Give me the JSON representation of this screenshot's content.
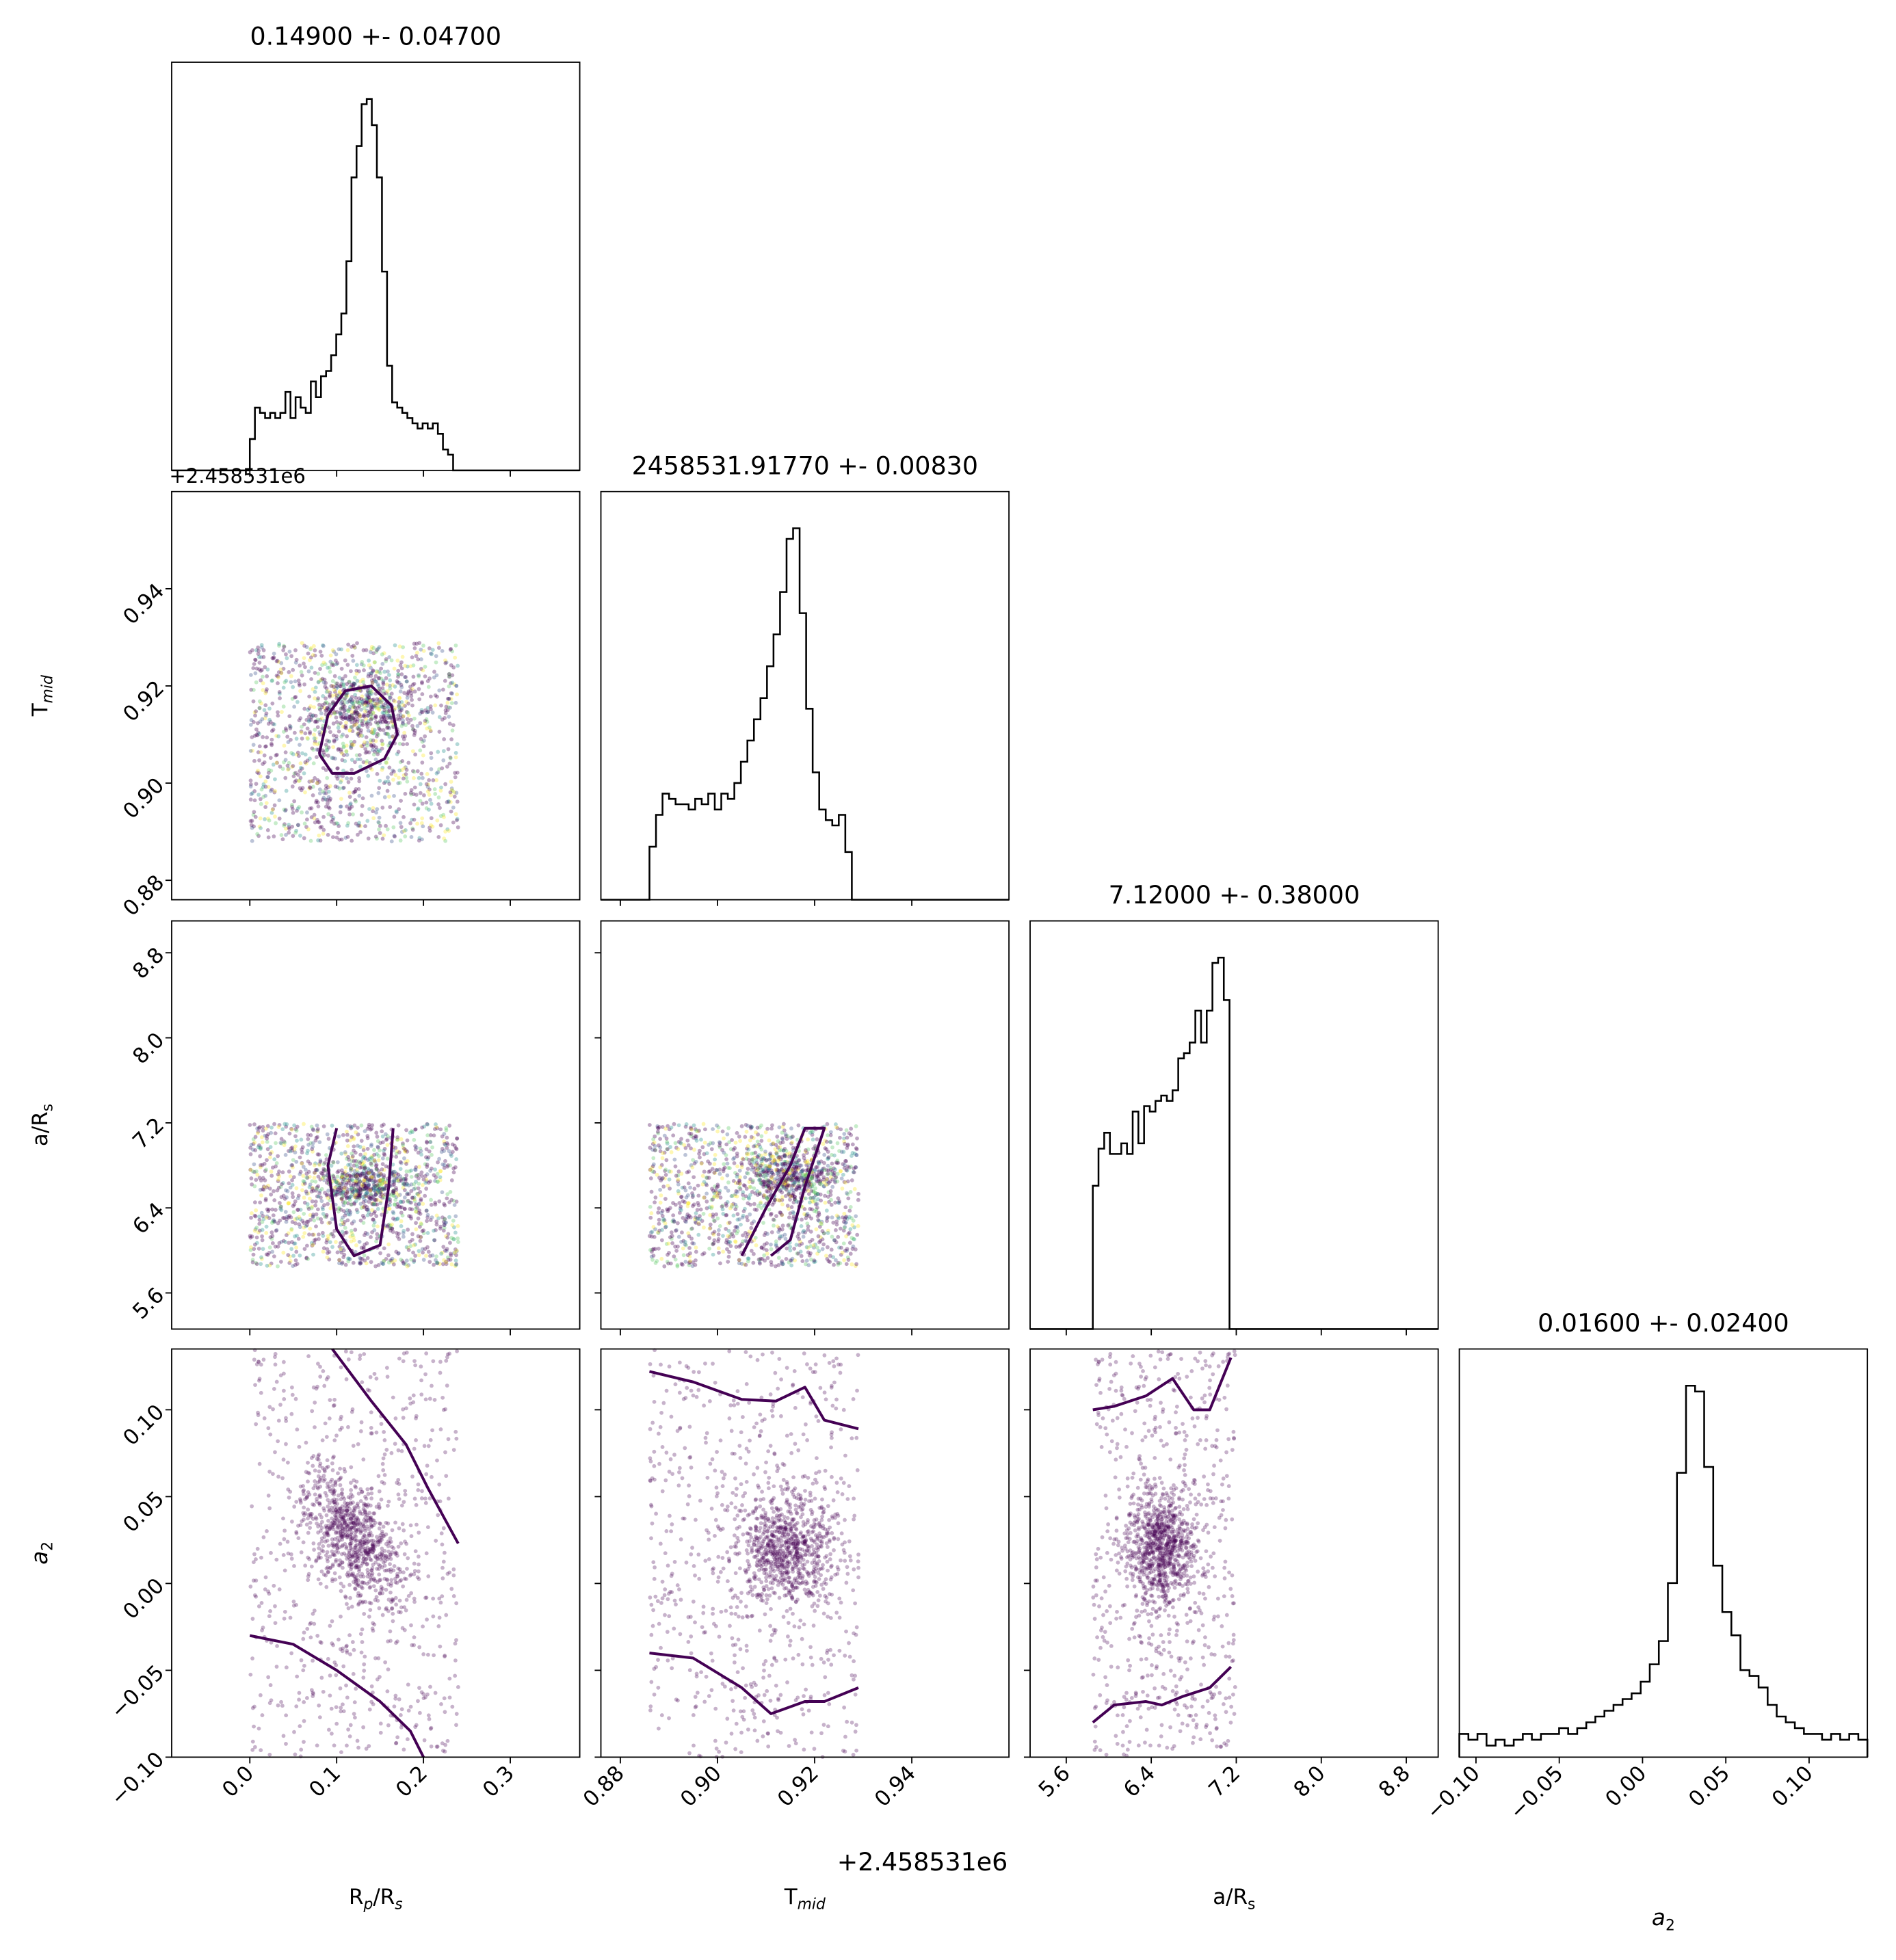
{
  "chart_data": [
    {
      "type": "histogram",
      "parameter": "R_p/R_s",
      "title": "0.14900 +- 0.04700",
      "xlabel": "Rp/Rs",
      "xlim": [
        -0.09,
        0.38
      ],
      "xticks": [
        0.0,
        0.1,
        0.2,
        0.3
      ],
      "xtick_labels": [
        "0.0",
        "0.1",
        "0.2",
        "0.3"
      ],
      "bins_x": [
        0.0,
        0.24
      ],
      "counts": [
        6,
        12,
        11,
        10,
        11,
        10,
        11,
        15,
        10,
        14,
        12,
        11,
        17,
        14,
        18,
        19,
        22,
        26,
        30,
        40,
        56,
        62,
        70,
        71,
        66,
        56,
        38,
        20,
        13,
        12,
        11,
        10,
        9,
        8,
        9,
        8,
        9,
        7,
        4,
        3,
        0
      ]
    },
    {
      "type": "histogram",
      "parameter": "T_mid",
      "title": "2458531.91770 +- 0.00830",
      "xlabel": "Tmid",
      "offset_label": "+2.458531e6",
      "xlim": [
        0.876,
        0.96
      ],
      "xticks": [
        0.88,
        0.9,
        0.92,
        0.94
      ],
      "xtick_labels": [
        "0.88",
        "0.90",
        "0.92",
        "0.94"
      ],
      "bins_x": [
        0.886,
        0.929
      ],
      "counts": [
        10,
        16,
        20,
        19,
        18,
        18,
        17,
        19,
        18,
        20,
        17,
        20,
        19,
        22,
        26,
        30,
        34,
        38,
        44,
        50,
        58,
        68,
        70,
        54,
        36,
        24,
        17,
        15,
        14,
        16,
        9,
        0
      ]
    },
    {
      "type": "histogram",
      "parameter": "a/R_s",
      "title": "7.12000 +- 0.38000",
      "xlabel": "a/Rs",
      "xlim": [
        5.26,
        9.1
      ],
      "xticks": [
        5.6,
        6.4,
        7.2,
        8.0,
        8.8
      ],
      "xtick_labels": [
        "5.6",
        "6.4",
        "7.2",
        "8.0",
        "8.8"
      ],
      "bins_x": [
        5.85,
        7.19
      ],
      "counts": [
        27,
        34,
        37,
        33,
        33,
        35,
        33,
        41,
        35,
        42,
        41,
        43,
        44,
        43,
        45,
        51,
        52,
        54,
        60,
        54,
        60,
        69,
        70,
        62,
        0
      ]
    },
    {
      "type": "histogram",
      "parameter": "a_2",
      "title": "0.01600 +- 0.02400",
      "xlabel": "a2",
      "xlim": [
        -0.11,
        0.135
      ],
      "xticks": [
        -0.1,
        -0.05,
        0.0,
        0.05,
        0.1
      ],
      "xtick_labels": [
        "−0.10",
        "−0.05",
        "0.00",
        "0.05",
        "0.10"
      ],
      "bins_x": [
        -0.11,
        0.135
      ],
      "counts": [
        4,
        3,
        4,
        2,
        3,
        2,
        3,
        4,
        3,
        4,
        4,
        5,
        4,
        5,
        6,
        7,
        8,
        9,
        10,
        11,
        13,
        16,
        20,
        30,
        49,
        64,
        63,
        50,
        33,
        25,
        21,
        15,
        14,
        12,
        9,
        7,
        6,
        5,
        4,
        4,
        3,
        4,
        3,
        4,
        3
      ]
    },
    {
      "type": "scatter",
      "x": "R_p/R_s",
      "y": "T_mid",
      "ylabel": "Tmid",
      "ylim": [
        0.876,
        0.96
      ],
      "yticks": [
        0.88,
        0.9,
        0.92,
        0.94
      ],
      "ytick_labels": [
        "0.88",
        "0.90",
        "0.92",
        "0.94"
      ],
      "y_offset_label": "+2.458531e6",
      "point_cloud": {
        "x_range": [
          0.0,
          0.24
        ],
        "y_range": [
          0.888,
          0.929
        ],
        "core_x": 0.13,
        "core_y": 0.915
      },
      "contour": [
        [
          0.08,
          0.906
        ],
        [
          0.09,
          0.914
        ],
        [
          0.11,
          0.919
        ],
        [
          0.14,
          0.92
        ],
        [
          0.163,
          0.916
        ],
        [
          0.17,
          0.91
        ],
        [
          0.155,
          0.905
        ],
        [
          0.12,
          0.902
        ],
        [
          0.095,
          0.902
        ],
        [
          0.08,
          0.906
        ]
      ]
    },
    {
      "type": "scatter",
      "x": "R_p/R_s",
      "y": "a/R_s",
      "ylabel": "a/Rs",
      "ylim": [
        5.26,
        9.1
      ],
      "yticks": [
        5.6,
        6.4,
        7.2,
        8.0,
        8.8
      ],
      "ytick_labels": [
        "5.6",
        "6.4",
        "7.2",
        "8.0",
        "8.8"
      ],
      "point_cloud": {
        "x_range": [
          0.0,
          0.24
        ],
        "y_range": [
          5.85,
          7.19
        ],
        "core_x": 0.13,
        "core_y": 6.6
      },
      "contour": [
        [
          0.1,
          7.15
        ],
        [
          0.09,
          6.8
        ],
        [
          0.1,
          6.2
        ],
        [
          0.12,
          5.95
        ],
        [
          0.15,
          6.05
        ],
        [
          0.16,
          6.6
        ],
        [
          0.165,
          7.15
        ]
      ]
    },
    {
      "type": "scatter",
      "x": "T_mid",
      "y": "a/R_s",
      "point_cloud": {
        "x_range": [
          0.886,
          0.929
        ],
        "y_range": [
          5.85,
          7.19
        ],
        "core_x": 0.915,
        "core_y": 6.7
      },
      "contour": [
        [
          0.905,
          5.95
        ],
        [
          0.91,
          6.4
        ],
        [
          0.915,
          6.8
        ],
        [
          0.918,
          7.15
        ],
        [
          0.922,
          7.15
        ],
        [
          0.918,
          6.6
        ],
        [
          0.915,
          6.1
        ],
        [
          0.911,
          5.95
        ]
      ]
    },
    {
      "type": "scatter",
      "x": "R_p/R_s",
      "y": "a_2",
      "ylabel": "a2",
      "ylim": [
        -0.1,
        0.135
      ],
      "yticks": [
        -0.1,
        -0.05,
        0.0,
        0.05,
        0.1
      ],
      "ytick_labels": [
        "−0.10",
        "−0.05",
        "0.00",
        "0.05",
        "0.10"
      ],
      "point_cloud": {
        "x_range": [
          0.0,
          0.24
        ],
        "y_range": [
          -0.1,
          0.135
        ],
        "core_x": 0.12,
        "core_y": 0.025
      },
      "contours": [
        [
          [
            0.095,
            0.135
          ],
          [
            0.14,
            0.105
          ],
          [
            0.18,
            0.08
          ],
          [
            0.205,
            0.055
          ],
          [
            0.24,
            0.023
          ]
        ],
        [
          [
            0.0,
            -0.03
          ],
          [
            0.05,
            -0.035
          ],
          [
            0.1,
            -0.05
          ],
          [
            0.15,
            -0.068
          ],
          [
            0.185,
            -0.085
          ],
          [
            0.2,
            -0.1
          ]
        ]
      ]
    },
    {
      "type": "scatter",
      "x": "T_mid",
      "y": "a_2",
      "point_cloud": {
        "x_range": [
          0.886,
          0.929
        ],
        "y_range": [
          -0.1,
          0.135
        ],
        "core_x": 0.914,
        "core_y": 0.02
      },
      "contours": [
        [
          [
            0.886,
            0.122
          ],
          [
            0.895,
            0.116
          ],
          [
            0.905,
            0.106
          ],
          [
            0.912,
            0.105
          ],
          [
            0.918,
            0.113
          ],
          [
            0.922,
            0.094
          ],
          [
            0.929,
            0.089
          ]
        ],
        [
          [
            0.886,
            -0.04
          ],
          [
            0.895,
            -0.043
          ],
          [
            0.905,
            -0.06
          ],
          [
            0.911,
            -0.075
          ],
          [
            0.918,
            -0.068
          ],
          [
            0.922,
            -0.068
          ],
          [
            0.929,
            -0.06
          ]
        ]
      ]
    },
    {
      "type": "scatter",
      "x": "a/R_s",
      "y": "a_2",
      "point_cloud": {
        "x_range": [
          5.85,
          7.19
        ],
        "y_range": [
          -0.1,
          0.135
        ],
        "core_x": 6.5,
        "core_y": 0.02
      },
      "contours": [
        [
          [
            5.85,
            0.1
          ],
          [
            6.05,
            0.102
          ],
          [
            6.35,
            0.108
          ],
          [
            6.6,
            0.118
          ],
          [
            6.8,
            0.1
          ],
          [
            6.95,
            0.1
          ],
          [
            7.15,
            0.13
          ]
        ],
        [
          [
            5.85,
            -0.08
          ],
          [
            6.05,
            -0.07
          ],
          [
            6.35,
            -0.068
          ],
          [
            6.5,
            -0.07
          ],
          [
            6.7,
            -0.065
          ],
          [
            6.95,
            -0.06
          ],
          [
            7.15,
            -0.048
          ]
        ]
      ]
    }
  ]
}
